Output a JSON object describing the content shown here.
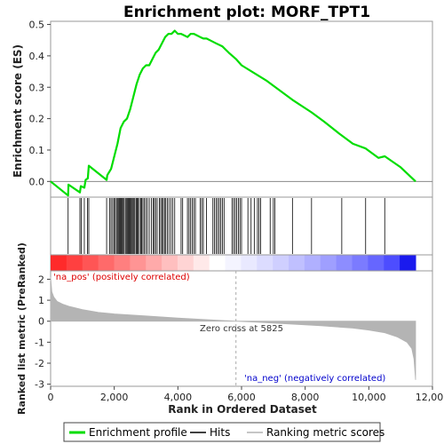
{
  "chart_data": {
    "type": "line",
    "title": "Enrichment plot: MORF_TPT1",
    "xlabel": "Rank in Ordered Dataset",
    "xlim": [
      0,
      12000
    ],
    "x_ticks": [
      0,
      2000,
      4000,
      6000,
      8000,
      10000,
      12000
    ],
    "x_tick_labels": [
      "0",
      "2,000",
      "4,000",
      "6,000",
      "8,000",
      "10,000",
      "12,000"
    ],
    "es_panel": {
      "ylabel": "Enrichment score (ES)",
      "ylim": [
        -0.05,
        0.51
      ],
      "y_ticks": [
        0.0,
        0.1,
        0.2,
        0.3,
        0.4,
        0.5
      ],
      "y_tick_labels": [
        "0.0",
        "0.1",
        "0.2",
        "0.3",
        "0.4",
        "0.5"
      ],
      "color": "#00dd00",
      "series": [
        {
          "name": "Enrichment profile",
          "x": [
            0,
            550,
            560,
            920,
            950,
            1060,
            1100,
            1170,
            1200,
            1760,
            1780,
            1900,
            1950,
            2000,
            2100,
            2200,
            2300,
            2400,
            2500,
            2600,
            2700,
            2800,
            2900,
            3000,
            3100,
            3200,
            3300,
            3400,
            3500,
            3600,
            3700,
            3800,
            3900,
            4000,
            4100,
            4200,
            4300,
            4400,
            4500,
            4600,
            4700,
            4800,
            4900,
            5000,
            5200,
            5400,
            5600,
            5825,
            6000,
            6400,
            6800,
            7000,
            7600,
            8200,
            8600,
            9100,
            9500,
            9900,
            10300,
            10500,
            11000,
            11470
          ],
          "y": [
            0.0,
            -0.045,
            -0.01,
            -0.035,
            -0.015,
            -0.02,
            0.005,
            0.01,
            0.05,
            0.005,
            0.02,
            0.04,
            0.06,
            0.08,
            0.12,
            0.17,
            0.19,
            0.2,
            0.23,
            0.27,
            0.31,
            0.34,
            0.36,
            0.37,
            0.37,
            0.39,
            0.41,
            0.42,
            0.44,
            0.46,
            0.47,
            0.47,
            0.48,
            0.47,
            0.47,
            0.465,
            0.46,
            0.47,
            0.47,
            0.465,
            0.46,
            0.455,
            0.455,
            0.45,
            0.44,
            0.43,
            0.41,
            0.39,
            0.37,
            0.345,
            0.32,
            0.305,
            0.26,
            0.22,
            0.19,
            0.15,
            0.12,
            0.105,
            0.075,
            0.08,
            0.045,
            0.0
          ]
        }
      ]
    },
    "hits": [
      550,
      920,
      960,
      1060,
      1160,
      1200,
      1760,
      1860,
      1900,
      1950,
      1990,
      2030,
      2070,
      2100,
      2130,
      2160,
      2190,
      2220,
      2250,
      2280,
      2310,
      2350,
      2380,
      2410,
      2440,
      2470,
      2500,
      2530,
      2560,
      2590,
      2620,
      2650,
      2690,
      2720,
      2750,
      2790,
      2830,
      2860,
      2900,
      2940,
      2990,
      3040,
      3100,
      3170,
      3220,
      3260,
      3300,
      3350,
      3420,
      3460,
      3500,
      3540,
      3580,
      3620,
      3670,
      3720,
      3780,
      3840,
      3900,
      4100,
      4150,
      4300,
      4350,
      4400,
      4450,
      4500,
      4550,
      4700,
      4750,
      4800,
      4900,
      5100,
      5150,
      5200,
      5250,
      5300,
      5350,
      5400,
      5450,
      5700,
      5750,
      5800,
      5850,
      5900,
      5950,
      6000,
      6200,
      6300,
      6400,
      6500,
      6550,
      6600,
      6900,
      7000,
      7050,
      7600,
      8200,
      9150,
      9900,
      10500
    ],
    "heatmap": {
      "cells": 23,
      "colors": [
        "#ff2a2a",
        "#ff4040",
        "#ff5555",
        "#ff6a6a",
        "#ff7f7f",
        "#ff9494",
        "#ffaaaa",
        "#ffbfbf",
        "#ffd4d4",
        "#ffe9e9",
        "#ffffff",
        "#f4f4ff",
        "#e9e9ff",
        "#dcdcff",
        "#cfcfff",
        "#c0c0ff",
        "#b0b0ff",
        "#9f9fff",
        "#8d8dff",
        "#7b7bff",
        "#6666ff",
        "#4d4dff",
        "#1a1aee"
      ]
    },
    "rank_panel": {
      "ylabel": "Ranked list metric (PreRanked)",
      "ylim": [
        -3.1,
        2.4
      ],
      "y_ticks": [
        -3,
        -2,
        -1,
        0,
        1,
        2
      ],
      "y_tick_labels": [
        "-3",
        "-2",
        "-1",
        "0",
        "1",
        "2"
      ],
      "fill_color": "#b4b4b4",
      "x": [
        0,
        40,
        100,
        200,
        400,
        600,
        1000,
        1500,
        2000,
        3000,
        4000,
        5000,
        5825,
        6500,
        7500,
        8500,
        9500,
        10000,
        10500,
        10900,
        11200,
        11350,
        11420,
        11470
      ],
      "y": [
        2.1,
        1.4,
        1.15,
        0.95,
        0.8,
        0.7,
        0.55,
        0.42,
        0.35,
        0.25,
        0.15,
        0.07,
        0.0,
        -0.05,
        -0.13,
        -0.22,
        -0.33,
        -0.42,
        -0.55,
        -0.75,
        -1.0,
        -1.3,
        -1.8,
        -2.8
      ],
      "zero_cross": 5825,
      "zero_cross_label": "Zero cross at 5825",
      "pos_label": "'na_pos' (positively correlated)",
      "neg_label": "'na_neg' (negatively correlated)",
      "pos_color": "#dd0000",
      "neg_color": "#0000cc"
    },
    "legend": {
      "placement": "bottom",
      "items": [
        {
          "label": "Enrichment profile",
          "color": "#00dd00"
        },
        {
          "label": "Hits",
          "color": "#000000"
        },
        {
          "label": "Ranking metric scores",
          "color": "#b4b4b4"
        }
      ]
    }
  }
}
